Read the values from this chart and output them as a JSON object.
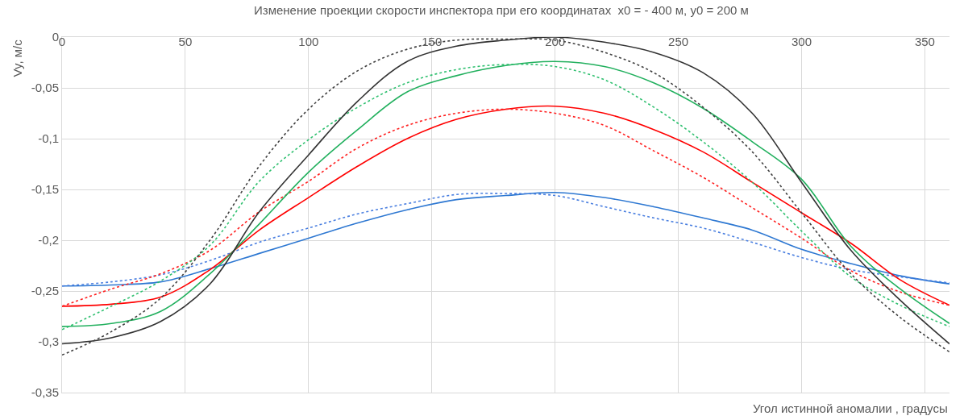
{
  "chart_data": {
    "type": "line",
    "title": "Изменение проекции скорости инспектора при его координатах  x0 = - 400 м, y0 = 200 м",
    "xlabel": "Угол истинной аномалии , градусы",
    "ylabel": "Vy, м/с",
    "x": [
      0,
      20,
      40,
      60,
      80,
      100,
      120,
      140,
      160,
      180,
      200,
      220,
      240,
      260,
      280,
      300,
      320,
      340,
      360
    ],
    "xlim": [
      0,
      360
    ],
    "xticks": [
      0,
      50,
      100,
      150,
      200,
      250,
      300,
      350
    ],
    "ylim": [
      -0.35,
      0
    ],
    "yticks": [
      {
        "value": -0.35,
        "label": "-0,35"
      },
      {
        "value": -0.3,
        "label": "-0,3"
      },
      {
        "value": -0.25,
        "label": "-0,25"
      },
      {
        "value": -0.2,
        "label": "-0,2"
      },
      {
        "value": -0.15,
        "label": "-0,15"
      },
      {
        "value": -0.1,
        "label": "-0,1"
      },
      {
        "value": -0.05,
        "label": "-0,05"
      },
      {
        "value": 0,
        "label": "0"
      }
    ],
    "grid": true,
    "marker": "none",
    "series": [
      {
        "color": "#2e78d2",
        "line_style": "solid",
        "values": [
          -0.245,
          -0.244,
          -0.241,
          -0.228,
          -0.213,
          -0.198,
          -0.183,
          -0.17,
          -0.16,
          -0.156,
          -0.153,
          -0.158,
          -0.167,
          -0.178,
          -0.19,
          -0.209,
          -0.223,
          -0.235,
          -0.243
        ]
      },
      {
        "color": "#4a7fe0",
        "line_style": "dotted",
        "values": [
          -0.245,
          -0.241,
          -0.234,
          -0.22,
          -0.202,
          -0.188,
          -0.174,
          -0.164,
          -0.155,
          -0.154,
          -0.156,
          -0.167,
          -0.178,
          -0.188,
          -0.202,
          -0.217,
          -0.229,
          -0.236,
          -0.242
        ]
      },
      {
        "color": "#ff0000",
        "line_style": "solid",
        "values": [
          -0.265,
          -0.263,
          -0.256,
          -0.229,
          -0.19,
          -0.158,
          -0.127,
          -0.1,
          -0.081,
          -0.071,
          -0.068,
          -0.075,
          -0.091,
          -0.113,
          -0.143,
          -0.173,
          -0.203,
          -0.239,
          -0.264
        ]
      },
      {
        "color": "#ff2020",
        "line_style": "dotted",
        "values": [
          -0.265,
          -0.248,
          -0.233,
          -0.21,
          -0.172,
          -0.142,
          -0.109,
          -0.087,
          -0.075,
          -0.071,
          -0.075,
          -0.087,
          -0.112,
          -0.138,
          -0.168,
          -0.198,
          -0.23,
          -0.251,
          -0.264
        ]
      },
      {
        "color": "#22b05e",
        "line_style": "solid",
        "values": [
          -0.285,
          -0.282,
          -0.27,
          -0.233,
          -0.184,
          -0.133,
          -0.091,
          -0.054,
          -0.038,
          -0.028,
          -0.024,
          -0.029,
          -0.045,
          -0.07,
          -0.103,
          -0.14,
          -0.206,
          -0.248,
          -0.282
        ]
      },
      {
        "color": "#30c070",
        "line_style": "dotted",
        "values": [
          -0.288,
          -0.265,
          -0.24,
          -0.205,
          -0.142,
          -0.101,
          -0.069,
          -0.045,
          -0.032,
          -0.027,
          -0.029,
          -0.042,
          -0.069,
          -0.103,
          -0.143,
          -0.191,
          -0.236,
          -0.264,
          -0.285
        ]
      },
      {
        "color": "#333333",
        "line_style": "solid",
        "values": [
          -0.302,
          -0.296,
          -0.28,
          -0.243,
          -0.172,
          -0.116,
          -0.063,
          -0.024,
          -0.009,
          -0.003,
          0,
          -0.005,
          -0.015,
          -0.035,
          -0.075,
          -0.143,
          -0.21,
          -0.259,
          -0.302
        ]
      },
      {
        "color": "#404040",
        "line_style": "dotted",
        "values": [
          -0.313,
          -0.29,
          -0.257,
          -0.2,
          -0.127,
          -0.071,
          -0.033,
          -0.012,
          -0.003,
          -0.002,
          -0.003,
          -0.015,
          -0.035,
          -0.069,
          -0.113,
          -0.173,
          -0.233,
          -0.276,
          -0.31
        ]
      }
    ]
  }
}
